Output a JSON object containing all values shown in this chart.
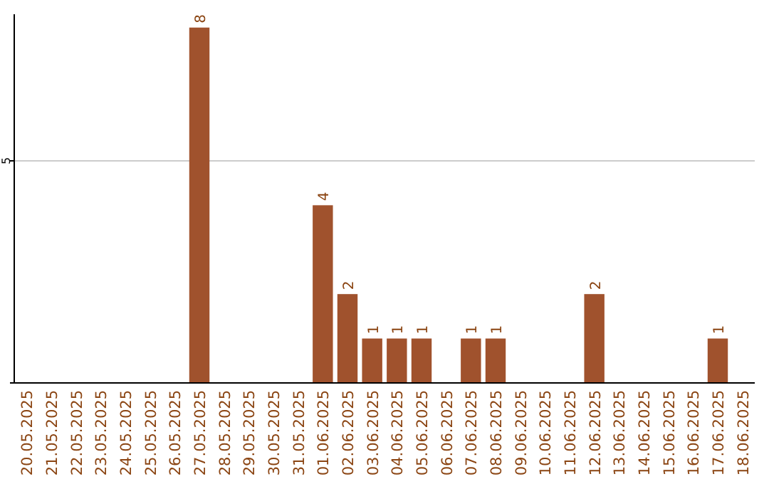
{
  "chart_data": {
    "type": "bar",
    "categories": [
      "20.05.2025",
      "21.05.2025",
      "22.05.2025",
      "23.05.2025",
      "24.05.2025",
      "25.05.2025",
      "26.05.2025",
      "27.05.2025",
      "28.05.2025",
      "29.05.2025",
      "30.05.2025",
      "31.05.2025",
      "01.06.2025",
      "02.06.2025",
      "03.06.2025",
      "04.06.2025",
      "05.06.2025",
      "06.06.2025",
      "07.06.2025",
      "08.06.2025",
      "09.06.2025",
      "10.06.2025",
      "11.06.2025",
      "12.06.2025",
      "13.06.2025",
      "14.06.2025",
      "15.06.2025",
      "16.06.2025",
      "17.06.2025",
      "18.06.2025"
    ],
    "values": [
      0,
      0,
      0,
      0,
      0,
      0,
      0,
      8,
      0,
      0,
      0,
      0,
      4,
      2,
      1,
      1,
      1,
      0,
      1,
      1,
      0,
      0,
      0,
      2,
      0,
      0,
      0,
      0,
      1,
      0
    ],
    "value_labels": [
      null,
      null,
      null,
      null,
      null,
      null,
      null,
      "8",
      null,
      null,
      null,
      null,
      "4",
      "2",
      "1",
      "1",
      "1",
      null,
      "1",
      "1",
      null,
      null,
      null,
      "2",
      null,
      null,
      null,
      null,
      "1",
      null
    ],
    "color": "#a0522d",
    "ylim": [
      0,
      8.3
    ],
    "yticks": [
      {
        "value": 0,
        "label": null
      },
      5
    ],
    "grid": "y"
  }
}
